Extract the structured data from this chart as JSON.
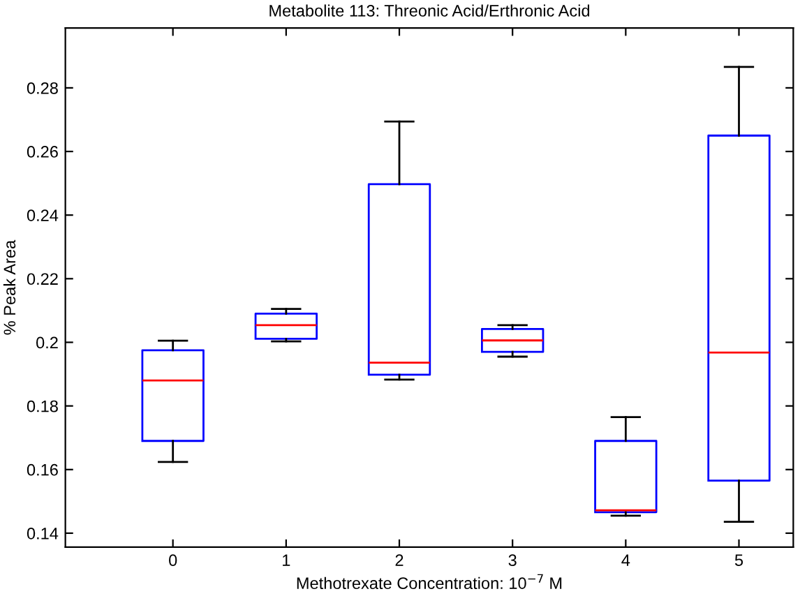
{
  "chart_data": {
    "type": "box",
    "title": "Metabolite 113: Threonic Acid/Erthronic Acid",
    "xlabel": "Methotrexate Concentration: 10$^{−7}$ M",
    "ylabel": "% Peak Area",
    "categories": [
      "0",
      "1",
      "2",
      "3",
      "4",
      "5"
    ],
    "boxes": [
      {
        "low": 0.1624,
        "q1": 0.169,
        "median": 0.188,
        "q3": 0.1975,
        "high": 0.2005
      },
      {
        "low": 0.2003,
        "q1": 0.2011,
        "median": 0.2054,
        "q3": 0.209,
        "high": 0.2105
      },
      {
        "low": 0.1883,
        "q1": 0.1898,
        "median": 0.1936,
        "q3": 0.2497,
        "high": 0.2694
      },
      {
        "low": 0.1955,
        "q1": 0.197,
        "median": 0.2006,
        "q3": 0.2042,
        "high": 0.2054
      },
      {
        "low": 0.1455,
        "q1": 0.1466,
        "median": 0.1472,
        "q3": 0.169,
        "high": 0.1765
      },
      {
        "low": 0.1436,
        "q1": 0.1565,
        "median": 0.1968,
        "q3": 0.265,
        "high": 0.2866
      }
    ],
    "color": "#0000ff",
    "ylim": [
      0.1356,
      0.2988
    ],
    "yticks": [
      0.14,
      0.16,
      0.18,
      0.2,
      0.22,
      0.24,
      0.26,
      0.28
    ],
    "grid": false,
    "legend": false
  }
}
